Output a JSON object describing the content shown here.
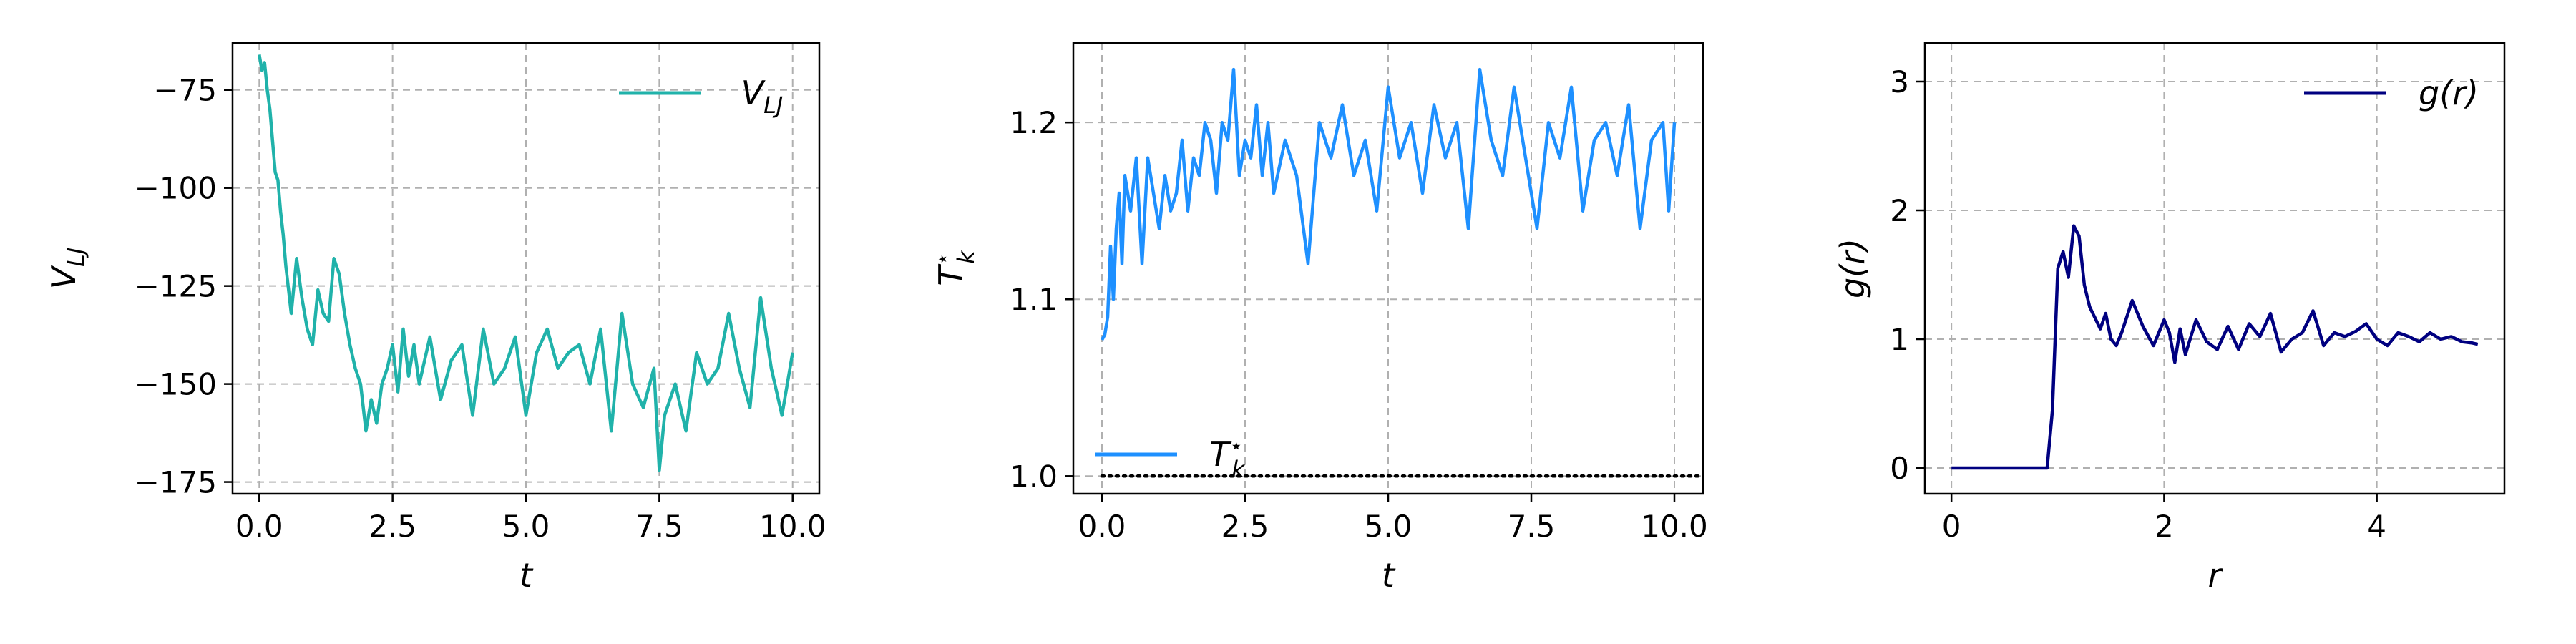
{
  "chart_data": [
    {
      "type": "line",
      "xlabel": "t",
      "ylabel": "V_LJ",
      "xlim": [
        -0.5,
        10.5
      ],
      "ylim": [
        -178,
        -63
      ],
      "xticks": [
        0.0,
        2.5,
        5.0,
        7.5,
        10.0
      ],
      "xtick_labels": [
        "0.0",
        "2.5",
        "5.0",
        "7.5",
        "10.0"
      ],
      "yticks": [
        -175,
        -150,
        -125,
        -100,
        -75
      ],
      "ytick_labels": [
        "−175",
        "−150",
        "−125",
        "−100",
        "−75"
      ],
      "grid": true,
      "legend_position": "top-right",
      "series": [
        {
          "name": "V_LJ",
          "color": "#20b2aa",
          "x": [
            0.0,
            0.05,
            0.1,
            0.15,
            0.2,
            0.25,
            0.3,
            0.35,
            0.4,
            0.45,
            0.5,
            0.55,
            0.6,
            0.7,
            0.8,
            0.9,
            1.0,
            1.1,
            1.2,
            1.3,
            1.4,
            1.5,
            1.6,
            1.7,
            1.8,
            1.9,
            2.0,
            2.1,
            2.2,
            2.3,
            2.4,
            2.5,
            2.6,
            2.7,
            2.8,
            2.9,
            3.0,
            3.2,
            3.4,
            3.6,
            3.8,
            4.0,
            4.2,
            4.4,
            4.6,
            4.8,
            5.0,
            5.2,
            5.4,
            5.6,
            5.8,
            6.0,
            6.2,
            6.4,
            6.6,
            6.8,
            7.0,
            7.2,
            7.4,
            7.5,
            7.6,
            7.8,
            8.0,
            8.2,
            8.4,
            8.6,
            8.8,
            9.0,
            9.2,
            9.4,
            9.6,
            9.8,
            10.0
          ],
          "y": [
            -66,
            -70,
            -68,
            -75,
            -80,
            -88,
            -96,
            -98,
            -106,
            -112,
            -120,
            -126,
            -132,
            -118,
            -128,
            -136,
            -140,
            -126,
            -132,
            -134,
            -118,
            -122,
            -132,
            -140,
            -146,
            -150,
            -162,
            -154,
            -160,
            -150,
            -146,
            -140,
            -152,
            -136,
            -148,
            -140,
            -150,
            -138,
            -154,
            -144,
            -140,
            -158,
            -136,
            -150,
            -146,
            -138,
            -158,
            -142,
            -136,
            -146,
            -142,
            -140,
            -150,
            -136,
            -162,
            -132,
            -150,
            -156,
            -146,
            -172,
            -158,
            -150,
            -162,
            -142,
            -150,
            -146,
            -132,
            -146,
            -156,
            -128,
            -146,
            -158,
            -142
          ]
        }
      ]
    },
    {
      "type": "line",
      "xlabel": "t",
      "ylabel": "T_k*",
      "xlim": [
        -0.5,
        10.5
      ],
      "ylim": [
        0.99,
        1.245
      ],
      "xticks": [
        0.0,
        2.5,
        5.0,
        7.5,
        10.0
      ],
      "xtick_labels": [
        "0.0",
        "2.5",
        "5.0",
        "7.5",
        "10.0"
      ],
      "yticks": [
        1.0,
        1.1,
        1.2
      ],
      "ytick_labels": [
        "1.0",
        "1.1",
        "1.2"
      ],
      "grid": true,
      "legend_position": "bottom-left",
      "reference_line": {
        "y": 1.0,
        "style": "dotted",
        "color": "#000000",
        "x": [
          0.0,
          10.5
        ]
      },
      "series": [
        {
          "name": "T_k*",
          "color": "#1e90ff",
          "x": [
            0.0,
            0.05,
            0.1,
            0.15,
            0.2,
            0.25,
            0.3,
            0.35,
            0.4,
            0.5,
            0.6,
            0.7,
            0.8,
            0.9,
            1.0,
            1.1,
            1.2,
            1.3,
            1.4,
            1.5,
            1.6,
            1.7,
            1.8,
            1.9,
            2.0,
            2.1,
            2.2,
            2.3,
            2.4,
            2.5,
            2.6,
            2.7,
            2.8,
            2.9,
            3.0,
            3.2,
            3.4,
            3.6,
            3.8,
            4.0,
            4.2,
            4.4,
            4.6,
            4.8,
            5.0,
            5.2,
            5.4,
            5.6,
            5.8,
            6.0,
            6.2,
            6.4,
            6.6,
            6.8,
            7.0,
            7.2,
            7.4,
            7.6,
            7.8,
            8.0,
            8.2,
            8.4,
            8.6,
            8.8,
            9.0,
            9.2,
            9.4,
            9.6,
            9.8,
            9.9,
            10.0
          ],
          "y": [
            1.077,
            1.08,
            1.09,
            1.13,
            1.1,
            1.14,
            1.16,
            1.12,
            1.17,
            1.15,
            1.18,
            1.12,
            1.18,
            1.16,
            1.14,
            1.17,
            1.15,
            1.16,
            1.19,
            1.15,
            1.18,
            1.17,
            1.2,
            1.19,
            1.16,
            1.2,
            1.19,
            1.23,
            1.17,
            1.19,
            1.18,
            1.21,
            1.17,
            1.2,
            1.16,
            1.19,
            1.17,
            1.12,
            1.2,
            1.18,
            1.21,
            1.17,
            1.19,
            1.15,
            1.22,
            1.18,
            1.2,
            1.16,
            1.21,
            1.18,
            1.2,
            1.14,
            1.23,
            1.19,
            1.17,
            1.22,
            1.18,
            1.14,
            1.2,
            1.18,
            1.22,
            1.15,
            1.19,
            1.2,
            1.17,
            1.21,
            1.14,
            1.19,
            1.2,
            1.15,
            1.2
          ]
        }
      ]
    },
    {
      "type": "line",
      "xlabel": "r",
      "ylabel": "g(r)",
      "xlim": [
        -0.25,
        5.2
      ],
      "ylim": [
        -0.2,
        3.3
      ],
      "xticks": [
        0,
        2,
        4
      ],
      "xtick_labels": [
        "0",
        "2",
        "4"
      ],
      "yticks": [
        0,
        1,
        2,
        3
      ],
      "ytick_labels": [
        "0",
        "1",
        "2",
        "3"
      ],
      "grid": true,
      "legend_position": "top-right",
      "series": [
        {
          "name": "g(r)",
          "color": "#000080",
          "x": [
            0.0,
            0.5,
            0.9,
            0.95,
            1.0,
            1.05,
            1.1,
            1.15,
            1.2,
            1.25,
            1.3,
            1.4,
            1.45,
            1.5,
            1.55,
            1.6,
            1.7,
            1.8,
            1.9,
            2.0,
            2.05,
            2.1,
            2.15,
            2.2,
            2.3,
            2.4,
            2.5,
            2.6,
            2.7,
            2.8,
            2.9,
            3.0,
            3.1,
            3.2,
            3.3,
            3.4,
            3.5,
            3.6,
            3.7,
            3.8,
            3.9,
            4.0,
            4.1,
            4.2,
            4.3,
            4.4,
            4.5,
            4.6,
            4.7,
            4.8,
            4.9,
            4.95
          ],
          "y": [
            0.0,
            0.0,
            0.0,
            0.45,
            1.55,
            1.68,
            1.48,
            1.88,
            1.8,
            1.42,
            1.25,
            1.08,
            1.2,
            1.0,
            0.95,
            1.05,
            1.3,
            1.1,
            0.95,
            1.15,
            1.05,
            0.82,
            1.08,
            0.88,
            1.15,
            0.98,
            0.92,
            1.1,
            0.92,
            1.12,
            1.02,
            1.2,
            0.9,
            1.0,
            1.05,
            1.22,
            0.95,
            1.05,
            1.02,
            1.06,
            1.12,
            1.0,
            0.95,
            1.05,
            1.02,
            0.98,
            1.05,
            1.0,
            1.02,
            0.98,
            0.97,
            0.96
          ]
        }
      ]
    }
  ]
}
